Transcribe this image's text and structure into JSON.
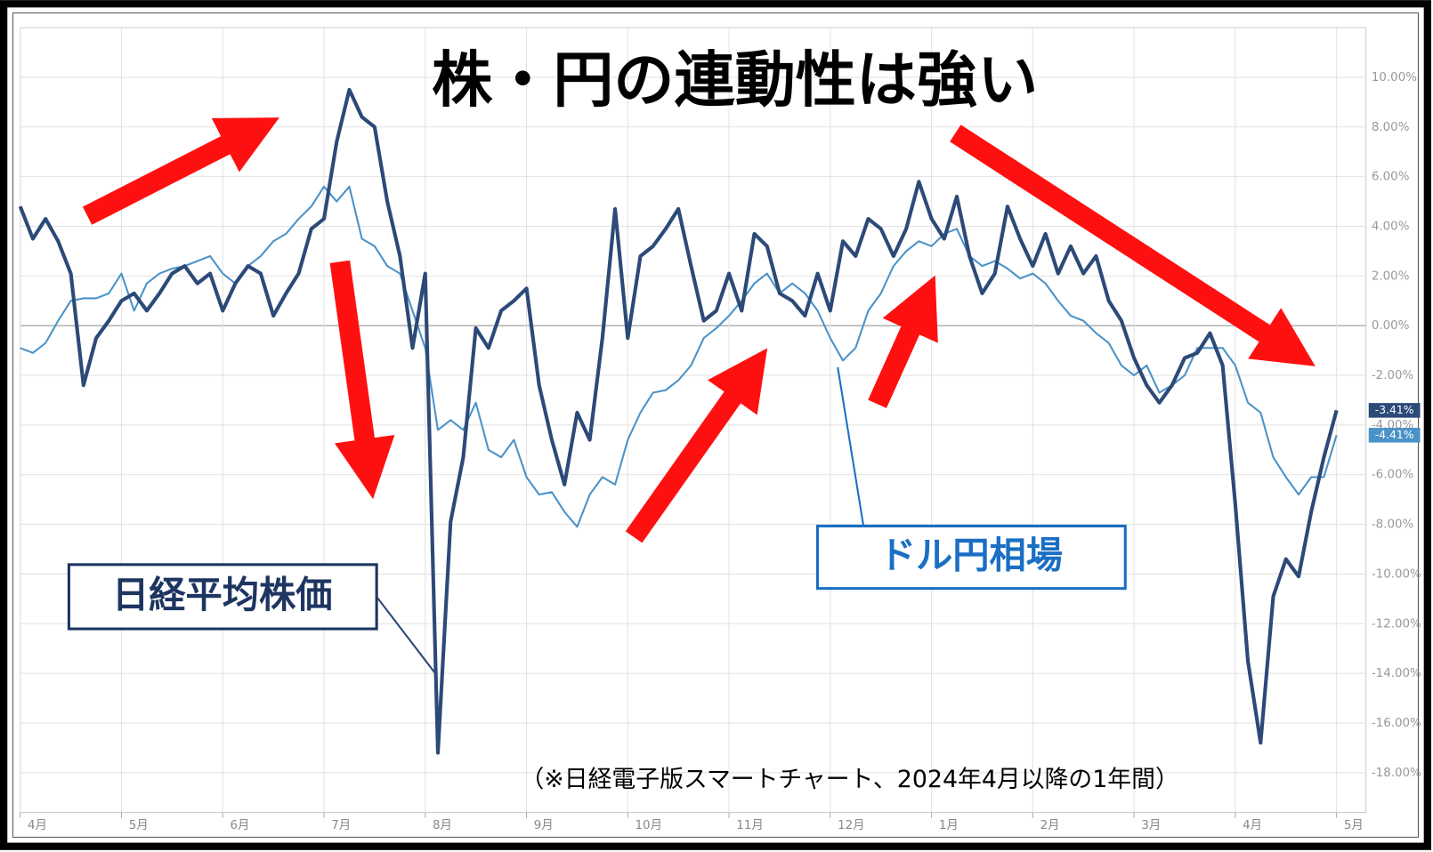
{
  "chart_data": {
    "type": "line",
    "title": "株・円の連動性は強い",
    "note": "（※日経電子版スマートチャート、2024年4月以降の1年間）",
    "categories": [
      "4月",
      null,
      null,
      null,
      null,
      null,
      null,
      null,
      "5月",
      null,
      null,
      null,
      null,
      null,
      null,
      null,
      "6月",
      null,
      null,
      null,
      null,
      null,
      null,
      null,
      "7月",
      null,
      null,
      null,
      null,
      null,
      null,
      null,
      "8月",
      null,
      null,
      null,
      null,
      null,
      null,
      null,
      "9月",
      null,
      null,
      null,
      null,
      null,
      null,
      null,
      "10月",
      null,
      null,
      null,
      null,
      null,
      null,
      null,
      "11月",
      null,
      null,
      null,
      null,
      null,
      null,
      null,
      "12月",
      null,
      null,
      null,
      null,
      null,
      null,
      null,
      "1月",
      null,
      null,
      null,
      null,
      null,
      null,
      null,
      "2月",
      null,
      null,
      null,
      null,
      null,
      null,
      null,
      "3月",
      null,
      null,
      null,
      null,
      null,
      null,
      null,
      "4月",
      null,
      null,
      null,
      null,
      null,
      null,
      null,
      "5月"
    ],
    "series": [
      {
        "name": "日経平均株価",
        "color": "#2c4a78",
        "end_label": "-3.41%",
        "values": [
          4.8,
          3.5,
          4.3,
          3.4,
          2.1,
          -2.4,
          -0.5,
          0.2,
          1.0,
          1.3,
          0.6,
          1.3,
          2.1,
          2.4,
          1.7,
          2.1,
          0.6,
          1.7,
          2.4,
          2.1,
          0.4,
          1.3,
          2.1,
          3.9,
          4.3,
          7.4,
          9.5,
          8.4,
          8.0,
          5.0,
          2.8,
          -0.9,
          2.1,
          -17.2,
          -7.9,
          -5.3,
          -0.1,
          -0.9,
          0.6,
          1.0,
          1.5,
          -2.4,
          -4.6,
          -6.4,
          -3.5,
          -4.6,
          -0.5,
          4.7,
          -0.5,
          2.8,
          3.2,
          3.9,
          4.7,
          2.4,
          0.2,
          0.6,
          2.1,
          0.6,
          3.7,
          3.2,
          1.3,
          1.0,
          0.4,
          2.1,
          0.6,
          3.4,
          2.8,
          4.3,
          3.9,
          2.8,
          3.9,
          5.8,
          4.3,
          3.5,
          5.2,
          2.8,
          1.3,
          2.1,
          4.8,
          3.5,
          2.4,
          3.7,
          2.1,
          3.2,
          2.1,
          2.8,
          1.0,
          0.2,
          -1.3,
          -2.4,
          -3.1,
          -2.4,
          -1.3,
          -1.1,
          -0.3,
          -1.6,
          -7.2,
          -13.5,
          -16.8,
          -10.9,
          -9.4,
          -10.1,
          -7.5,
          -5.3,
          -3.41
        ]
      },
      {
        "name": "ドル円相場",
        "color": "#4a92c8",
        "end_label": "-4.41%",
        "values": [
          -0.9,
          -1.1,
          -0.7,
          0.2,
          1.0,
          1.1,
          1.1,
          1.3,
          2.1,
          0.6,
          1.7,
          2.1,
          2.3,
          2.4,
          2.6,
          2.8,
          2.1,
          1.7,
          2.4,
          2.8,
          3.4,
          3.7,
          4.3,
          4.8,
          5.6,
          5.0,
          5.6,
          3.5,
          3.2,
          2.4,
          2.1,
          0.6,
          -0.9,
          -4.2,
          -3.8,
          -4.2,
          -3.1,
          -5.0,
          -5.3,
          -4.6,
          -6.1,
          -6.8,
          -6.7,
          -7.5,
          -8.1,
          -6.8,
          -6.1,
          -6.4,
          -4.6,
          -3.5,
          -2.7,
          -2.6,
          -2.2,
          -1.6,
          -0.5,
          -0.1,
          0.4,
          1.0,
          1.7,
          2.1,
          1.3,
          1.7,
          1.3,
          0.6,
          -0.5,
          -1.4,
          -0.9,
          0.6,
          1.3,
          2.4,
          3.0,
          3.4,
          3.2,
          3.7,
          3.9,
          2.8,
          2.4,
          2.6,
          2.3,
          1.9,
          2.1,
          1.7,
          1.0,
          0.4,
          0.2,
          -0.3,
          -0.7,
          -1.6,
          -2.0,
          -1.6,
          -2.7,
          -2.4,
          -2.0,
          -0.9,
          -0.9,
          -0.9,
          -1.6,
          -3.1,
          -3.5,
          -5.3,
          -6.1,
          -6.8,
          -6.1,
          -6.1,
          -4.41
        ]
      }
    ],
    "ylim": [
      -19.6,
      12
    ],
    "yticks": [
      {
        "value": -18,
        "label": "-18.00%"
      },
      {
        "value": -16,
        "label": "-16.00%"
      },
      {
        "value": -14,
        "label": "-14.00%"
      },
      {
        "value": -12,
        "label": "-12.00%"
      },
      {
        "value": -10,
        "label": "-10.00%"
      },
      {
        "value": -8,
        "label": "-8.00%"
      },
      {
        "value": -6,
        "label": "-6.00%"
      },
      {
        "value": -4,
        "label": "-4.00%"
      },
      {
        "value": -2,
        "label": "-2.00%"
      },
      {
        "value": 0,
        "label": "0.00%"
      },
      {
        "value": 2,
        "label": "2.00%"
      },
      {
        "value": 4,
        "label": "4.00%"
      },
      {
        "value": 6,
        "label": "6.00%"
      },
      {
        "value": 8,
        "label": "8.00%"
      },
      {
        "value": 10,
        "label": "10.00%"
      }
    ],
    "grid": true
  }
}
